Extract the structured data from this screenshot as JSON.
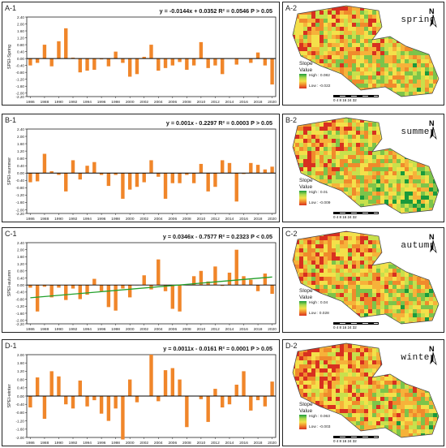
{
  "charts": [
    {
      "panel_label": "A-1",
      "equation": "y = -0.0144x + 0.0352  R² = 0.0546  P > 0.05",
      "chart_data": {
        "type": "bar",
        "ylabel": "SPEI-Spring",
        "ylim": [
          -2.2,
          2.4
        ],
        "y_ticks": [
          "2.40",
          "2.00",
          "1.60",
          "1.20",
          "0.80",
          "0.40",
          "0.00",
          "-0.40",
          "-0.80",
          "-1.20",
          "-1.60",
          "-2.00",
          "-2.20"
        ],
        "x": [
          1986,
          1987,
          1988,
          1989,
          1990,
          1991,
          1992,
          1993,
          1994,
          1995,
          1996,
          1997,
          1998,
          1999,
          2000,
          2001,
          2002,
          2003,
          2004,
          2005,
          2006,
          2007,
          2008,
          2009,
          2010,
          2011,
          2012,
          2013,
          2014,
          2015,
          2016,
          2017,
          2018,
          2019,
          2020
        ],
        "x_tick_labels": [
          "1986",
          "1988",
          "1990",
          "1992",
          "1994",
          "1996",
          "1998",
          "2000",
          "2002",
          "2004",
          "2006",
          "2008",
          "2010",
          "2012",
          "2014",
          "2016",
          "2018",
          "2020"
        ],
        "values": [
          -0.4,
          -0.25,
          0.8,
          -0.45,
          1.0,
          1.75,
          0.05,
          -0.8,
          -0.7,
          -0.65,
          -0.05,
          -0.45,
          0.4,
          -0.25,
          -1.05,
          -0.9,
          0.1,
          0.8,
          -0.7,
          -0.55,
          -0.4,
          -0.2,
          -0.65,
          -0.4,
          0.95,
          -0.55,
          -0.4,
          -0.9,
          0.0,
          -0.35,
          0.0,
          -0.25,
          0.35,
          -0.4,
          -1.5
        ],
        "trend": null
      },
      "map": {
        "panel_label": "A-2",
        "season": "spring",
        "legend_title": "Slope\nValue",
        "high": "High : 0.082",
        "low": "Low : -0.022",
        "scale": "0  4  8     16     24     32",
        "north": "N"
      }
    },
    {
      "panel_label": "B-1",
      "equation": "y = 0.001x - 0.2297  R² = 0.0003  P > 0.05",
      "chart_data": {
        "type": "bar",
        "ylabel": "SPEI-summer",
        "ylim": [
          -2.2,
          2.4
        ],
        "y_ticks": [
          "2.40",
          "2.00",
          "1.60",
          "1.20",
          "0.80",
          "0.40",
          "0.00",
          "-0.40",
          "-0.80",
          "-1.20",
          "-1.60",
          "-2.00",
          "-2.20"
        ],
        "x": [
          1986,
          1987,
          1988,
          1989,
          1990,
          1991,
          1992,
          1993,
          1994,
          1995,
          1996,
          1997,
          1998,
          1999,
          2000,
          2001,
          2002,
          2003,
          2004,
          2005,
          2006,
          2007,
          2008,
          2009,
          2010,
          2011,
          2012,
          2013,
          2014,
          2015,
          2016,
          2017,
          2018,
          2019,
          2020
        ],
        "x_tick_labels": [
          "1986",
          "1988",
          "1990",
          "1992",
          "1994",
          "1996",
          "1998",
          "2000",
          "2002",
          "2004",
          "2006",
          "2008",
          "2010",
          "2012",
          "2014",
          "2016",
          "2018",
          "2020"
        ],
        "values": [
          -0.5,
          -0.45,
          1.05,
          0.1,
          -0.1,
          -1.0,
          0.7,
          -0.35,
          0.4,
          0.6,
          -0.1,
          -0.7,
          -0.1,
          -1.4,
          -0.9,
          -0.75,
          -0.5,
          0.7,
          -0.2,
          -1.4,
          -0.55,
          -0.55,
          -0.1,
          -0.55,
          0.5,
          -1.0,
          -0.75,
          0.7,
          0.55,
          -1.55,
          -0.05,
          0.55,
          0.45,
          0.2,
          0.35
        ],
        "trend": null
      },
      "map": {
        "panel_label": "B-2",
        "season": "summer",
        "legend_title": "Slope\nValue",
        "high": "High : 0.01",
        "low": "Low : -0.009",
        "scale": "0  4  8     16     24     32",
        "north": "N"
      }
    },
    {
      "panel_label": "C-1",
      "equation": "y = 0.0346x - 0.7577  R² = 0.2323  P < 0.05",
      "chart_data": {
        "type": "bar",
        "ylabel": "SPEI-autumn",
        "ylim": [
          -2.2,
          2.4
        ],
        "y_ticks": [
          "2.40",
          "2.00",
          "1.60",
          "1.20",
          "0.80",
          "0.40",
          "0.00",
          "-0.40",
          "-0.80",
          "-1.20",
          "-1.60",
          "-2.00",
          "-2.20"
        ],
        "x": [
          1986,
          1987,
          1988,
          1989,
          1990,
          1991,
          1992,
          1993,
          1994,
          1995,
          1996,
          1997,
          1998,
          1999,
          2000,
          2001,
          2002,
          2003,
          2004,
          2005,
          2006,
          2007,
          2008,
          2009,
          2010,
          2011,
          2012,
          2013,
          2014,
          2015,
          2016,
          2017,
          2018,
          2019,
          2020
        ],
        "x_tick_labels": [
          "1986",
          "1988",
          "1990",
          "1992",
          "1994",
          "1996",
          "1998",
          "2000",
          "2002",
          "2004",
          "2006",
          "2008",
          "2010",
          "2012",
          "2014",
          "2016",
          "2018",
          "2020"
        ],
        "values": [
          -0.15,
          -1.5,
          -0.1,
          -0.7,
          -0.15,
          -0.85,
          -0.2,
          -0.8,
          -0.55,
          0.35,
          -0.35,
          -1.25,
          -1.45,
          -0.2,
          -0.7,
          0.0,
          0.55,
          -0.25,
          1.45,
          -0.35,
          -1.35,
          -1.5,
          0.05,
          0.5,
          0.8,
          0.2,
          1.05,
          -0.05,
          0.7,
          2.0,
          0.5,
          0.3,
          -0.35,
          0.65,
          -0.5
        ],
        "trend": {
          "label": "linear trend",
          "slope": 0.0346,
          "intercept": -0.7577
        }
      },
      "map": {
        "panel_label": "C-2",
        "season": "autumn",
        "legend_title": "Slope\nValue",
        "high": "High : 0.04",
        "low": "Low : 0.028",
        "scale": "0  4  8     16     24     32",
        "north": "N"
      }
    },
    {
      "panel_label": "D-1",
      "equation": "y = 0.0011x - 0.0161  R² = 0.0001  P > 0.05",
      "chart_data": {
        "type": "bar",
        "ylabel": "SPEI-winter",
        "ylim": [
          -2.0,
          2.0
        ],
        "y_ticks": [
          "2.00",
          "1.60",
          "1.20",
          "0.80",
          "0.40",
          "0.00",
          "-0.40",
          "-0.80",
          "-1.20",
          "-1.60",
          "-2.00"
        ],
        "x": [
          1986,
          1987,
          1988,
          1989,
          1990,
          1991,
          1992,
          1993,
          1994,
          1995,
          1996,
          1997,
          1998,
          1999,
          2000,
          2001,
          2002,
          2003,
          2004,
          2005,
          2006,
          2007,
          2008,
          2009,
          2010,
          2011,
          2012,
          2013,
          2014,
          2015,
          2016,
          2017,
          2018,
          2019,
          2020
        ],
        "x_tick_labels": [
          "1986",
          "1988",
          "1990",
          "1992",
          "1994",
          "1996",
          "1998",
          "2000",
          "2002",
          "2004",
          "2006",
          "2008",
          "2010",
          "2012",
          "2014",
          "2016",
          "2018",
          "2020"
        ],
        "values": [
          -0.55,
          0.9,
          -1.1,
          1.2,
          0.95,
          -0.4,
          -0.6,
          0.75,
          -0.5,
          -0.2,
          -0.85,
          -1.2,
          -0.6,
          -2.1,
          0.8,
          -0.3,
          0.0,
          2.0,
          -0.25,
          1.25,
          1.35,
          0.8,
          -1.5,
          0.0,
          -0.15,
          -1.25,
          0.35,
          -0.55,
          -0.4,
          0.55,
          1.2,
          -0.7,
          -0.2,
          -0.5,
          0.7
        ],
        "trend": null
      },
      "map": {
        "panel_label": "D-2",
        "season": "winter",
        "legend_title": "Slope\nValue",
        "high": "High : 0.063",
        "low": "Low : -0.003",
        "scale": "0  4  8     16     24     32",
        "north": "N"
      }
    }
  ],
  "colors": {
    "bar": "#f0862a",
    "trend": "#22a02a",
    "axis": "#222222",
    "grid": "#000000"
  }
}
